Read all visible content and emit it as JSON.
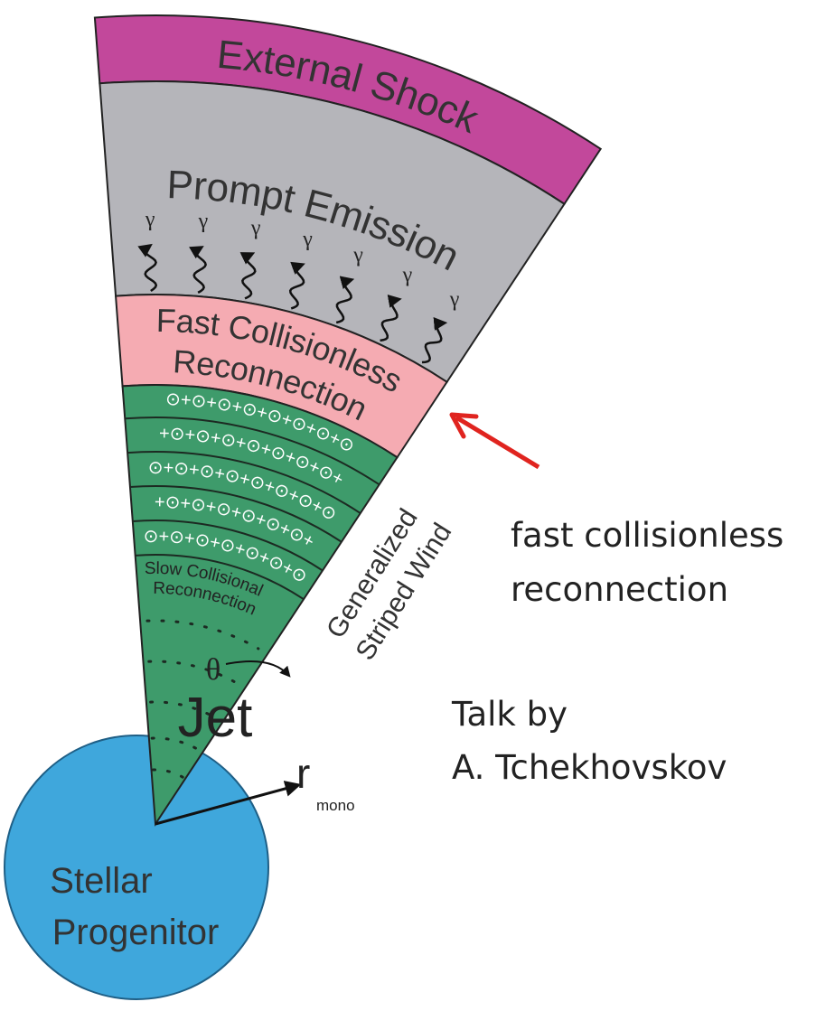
{
  "diagram": {
    "external_shock": "External Shock",
    "prompt_emission": "Prompt Emission",
    "gammas": [
      "γ",
      "γ",
      "γ",
      "γ",
      "γ",
      "γ",
      "γ"
    ],
    "fast_reconnection": [
      "Fast Collisionless",
      "Reconnection"
    ],
    "stripes": [
      "⊙+⊙+⊙+⊙+⊙+⊙+⊙+⊙",
      "+⊙+⊙+⊙+⊙+⊙+⊙+⊙+",
      "⊙+⊙+⊙+⊙+⊙+⊙+⊙+⊙",
      "+⊙+⊙+⊙+⊙+⊙+⊙+",
      "⊙+⊙+⊙+⊙+⊙+⊙+⊙"
    ],
    "slow_reconnection": [
      "Slow Collisional",
      "Reconnection"
    ],
    "theta": "θ",
    "jet": "Jet",
    "striped_wind": [
      "Generalized",
      "Striped Wind"
    ],
    "r_mono": {
      "symbol": "r",
      "subscript": "mono"
    },
    "progenitor": [
      "Stellar",
      "Progenitor"
    ]
  },
  "annotation": [
    "fast collisionless",
    "reconnection"
  ],
  "credit": [
    "Talk by",
    "A. Tchekhovskov"
  ]
}
